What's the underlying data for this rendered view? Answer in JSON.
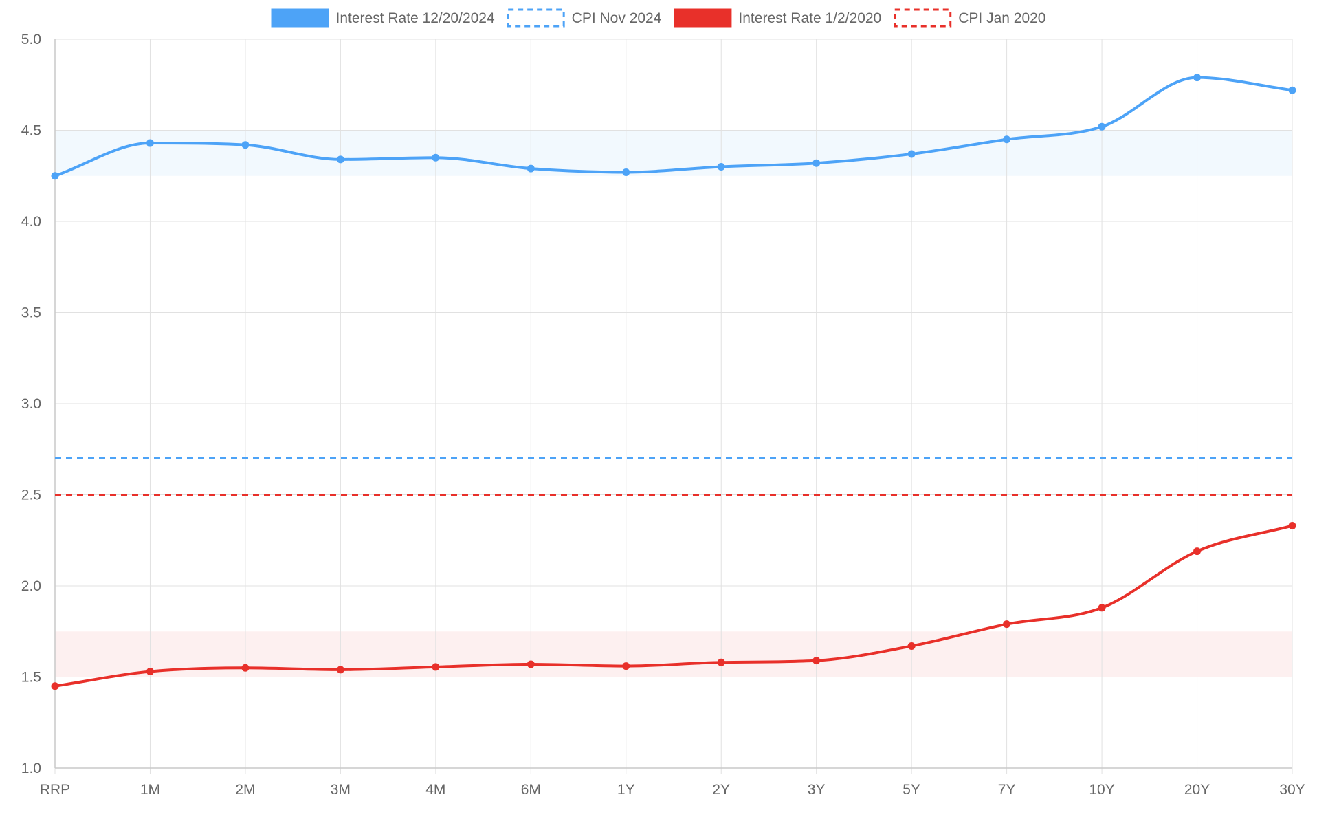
{
  "chart_data": {
    "type": "line",
    "title": "",
    "xlabel": "",
    "ylabel": "",
    "categories": [
      "RRP",
      "1M",
      "2M",
      "3M",
      "4M",
      "6M",
      "1Y",
      "2Y",
      "3Y",
      "5Y",
      "7Y",
      "10Y",
      "20Y",
      "30Y"
    ],
    "ylim": [
      1.0,
      5.0
    ],
    "yticks": [
      "1.0",
      "1.5",
      "2.0",
      "2.5",
      "3.0",
      "3.5",
      "4.0",
      "4.5",
      "5.0"
    ],
    "grid": true,
    "legend_position": "top-center",
    "series": [
      {
        "name": "Interest Rate 12/20/2024",
        "color": "#4da3f7",
        "style": "solid",
        "values": [
          4.25,
          4.43,
          4.42,
          4.34,
          4.35,
          4.29,
          4.27,
          4.3,
          4.32,
          4.37,
          4.45,
          4.52,
          4.79,
          4.72
        ]
      },
      {
        "name": "CPI Nov 2024",
        "color": "#4da3f7",
        "style": "dashed",
        "value": 2.7
      },
      {
        "name": "Interest Rate 1/2/2020",
        "color": "#e8302a",
        "style": "solid",
        "values": [
          1.45,
          1.53,
          1.55,
          1.54,
          1.555,
          1.57,
          1.56,
          1.58,
          1.59,
          1.67,
          1.79,
          1.88,
          2.19,
          2.33
        ]
      },
      {
        "name": "CPI Jan 2020",
        "color": "#e8302a",
        "style": "dashed",
        "value": 2.5
      }
    ],
    "bands": [
      {
        "from": 4.25,
        "to": 4.5,
        "color": "#4da3f7"
      },
      {
        "from": 1.5,
        "to": 1.75,
        "color": "#e8302a"
      }
    ]
  }
}
